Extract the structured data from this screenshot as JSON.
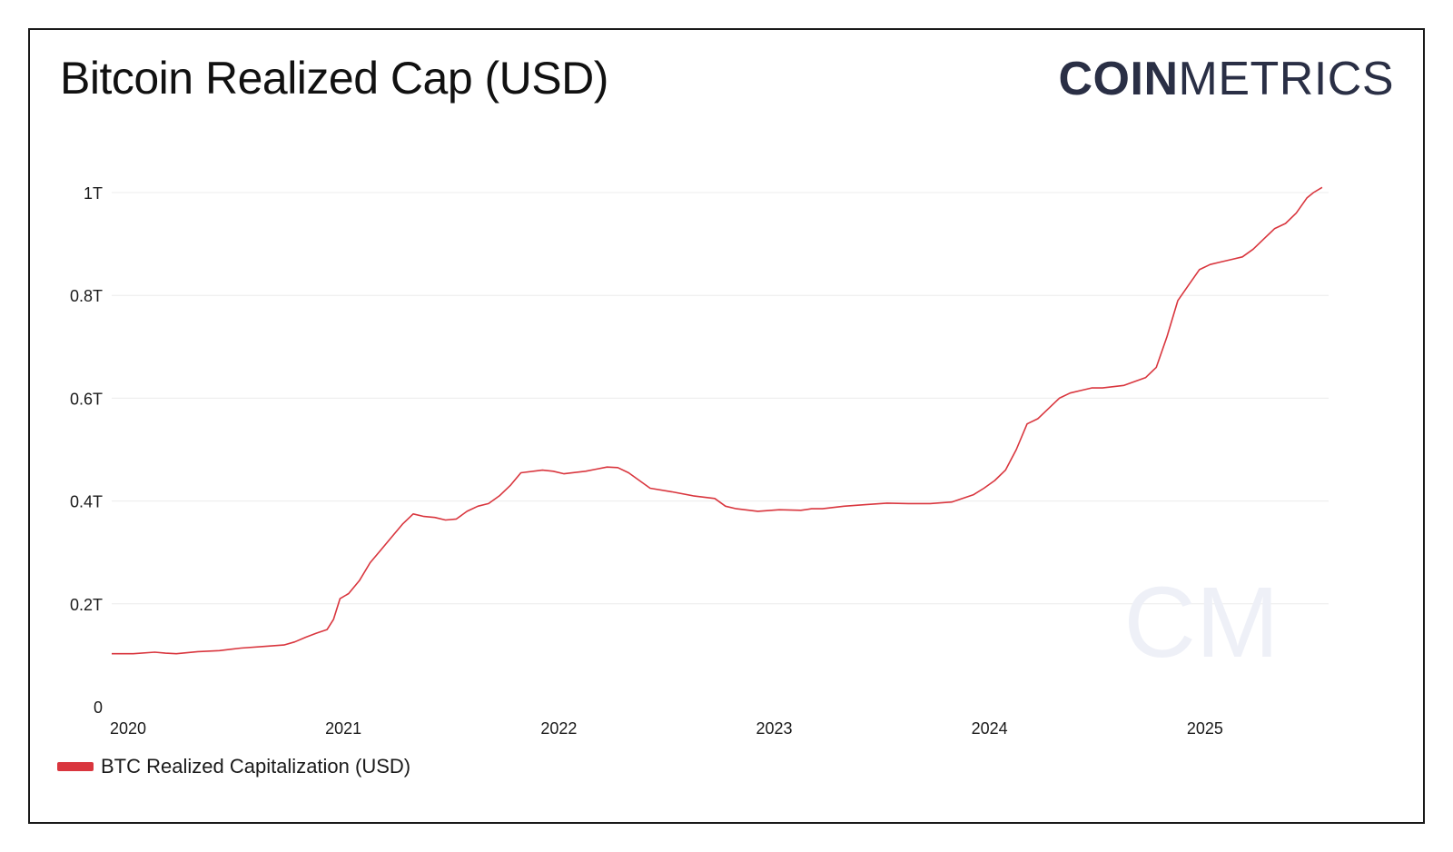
{
  "title": "Bitcoin Realized Cap (USD)",
  "logo": {
    "bold": "COIN",
    "light": "METRICS",
    "watermark": "CM"
  },
  "legend": {
    "label": "BTC Realized Capitalization (USD)"
  },
  "colors": {
    "series": "#d9363e",
    "grid": "#ececec",
    "text": "#1a1a1a",
    "logo": "#2a2f45",
    "watermark": "#eef0f7"
  },
  "chart_data": {
    "type": "line",
    "title": "Bitcoin Realized Cap (USD)",
    "xlabel": "",
    "ylabel": "",
    "grid": true,
    "legend_position": "bottom-left",
    "xlim": [
      2020.0,
      2025.65
    ],
    "ylim": [
      0,
      1.0
    ],
    "y_ticks": [
      {
        "value": 0,
        "label": "0"
      },
      {
        "value": 0.2,
        "label": "0.2T"
      },
      {
        "value": 0.4,
        "label": "0.4T"
      },
      {
        "value": 0.6,
        "label": "0.6T"
      },
      {
        "value": 0.8,
        "label": "0.8T"
      },
      {
        "value": 1.0,
        "label": "1T"
      }
    ],
    "x_ticks": [
      {
        "value": 2020,
        "label": "2020"
      },
      {
        "value": 2021,
        "label": "2021"
      },
      {
        "value": 2022,
        "label": "2022"
      },
      {
        "value": 2023,
        "label": "2023"
      },
      {
        "value": 2024,
        "label": "2024"
      },
      {
        "value": 2025,
        "label": "2025"
      }
    ],
    "series": [
      {
        "name": "BTC Realized Capitalization (USD)",
        "unit": "trillion USD",
        "x": [
          2020.0,
          2020.1,
          2020.2,
          2020.25,
          2020.3,
          2020.4,
          2020.5,
          2020.6,
          2020.7,
          2020.8,
          2020.85,
          2020.9,
          2020.95,
          2021.0,
          2021.03,
          2021.06,
          2021.1,
          2021.15,
          2021.2,
          2021.25,
          2021.3,
          2021.35,
          2021.4,
          2021.45,
          2021.5,
          2021.55,
          2021.6,
          2021.65,
          2021.7,
          2021.75,
          2021.8,
          2021.85,
          2021.9,
          2022.0,
          2022.05,
          2022.1,
          2022.2,
          2022.25,
          2022.3,
          2022.35,
          2022.4,
          2022.5,
          2022.6,
          2022.7,
          2022.8,
          2022.85,
          2022.9,
          2023.0,
          2023.1,
          2023.2,
          2023.25,
          2023.3,
          2023.4,
          2023.5,
          2023.6,
          2023.7,
          2023.8,
          2023.9,
          2024.0,
          2024.05,
          2024.1,
          2024.15,
          2024.2,
          2024.25,
          2024.3,
          2024.35,
          2024.4,
          2024.45,
          2024.5,
          2024.55,
          2024.6,
          2024.7,
          2024.8,
          2024.85,
          2024.9,
          2024.95,
          2025.0,
          2025.05,
          2025.1,
          2025.15,
          2025.2,
          2025.25,
          2025.3,
          2025.35,
          2025.4,
          2025.45,
          2025.5,
          2025.55,
          2025.58,
          2025.62
        ],
        "values": [
          0.103,
          0.103,
          0.106,
          0.104,
          0.103,
          0.107,
          0.109,
          0.114,
          0.117,
          0.12,
          0.126,
          0.135,
          0.143,
          0.15,
          0.17,
          0.21,
          0.22,
          0.245,
          0.28,
          0.305,
          0.33,
          0.355,
          0.375,
          0.37,
          0.368,
          0.363,
          0.365,
          0.38,
          0.39,
          0.395,
          0.41,
          0.43,
          0.455,
          0.46,
          0.458,
          0.453,
          0.458,
          0.462,
          0.466,
          0.465,
          0.455,
          0.425,
          0.418,
          0.41,
          0.405,
          0.39,
          0.385,
          0.38,
          0.383,
          0.382,
          0.385,
          0.385,
          0.39,
          0.393,
          0.396,
          0.395,
          0.395,
          0.398,
          0.412,
          0.425,
          0.44,
          0.46,
          0.5,
          0.55,
          0.56,
          0.58,
          0.6,
          0.61,
          0.615,
          0.62,
          0.62,
          0.625,
          0.64,
          0.66,
          0.72,
          0.79,
          0.82,
          0.85,
          0.86,
          0.865,
          0.87,
          0.875,
          0.89,
          0.91,
          0.93,
          0.94,
          0.96,
          0.99,
          1.0,
          1.01
        ]
      }
    ]
  }
}
